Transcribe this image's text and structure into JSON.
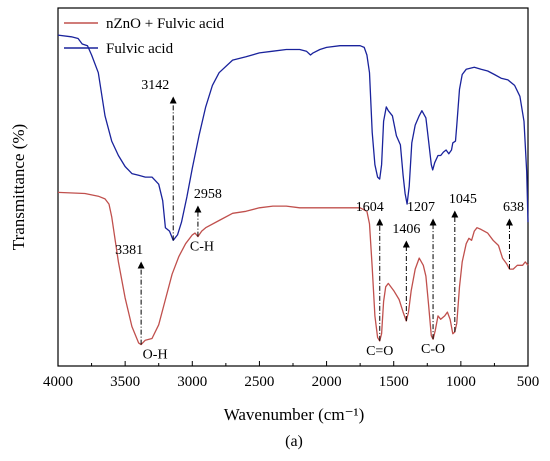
{
  "chart_data": {
    "type": "line",
    "xlabel": "Wavenumber (cm⁻¹)",
    "ylabel": "Transmittance (%)",
    "panel_label": "(a)",
    "xlim": [
      4000,
      500
    ],
    "ylim": [
      0,
      100
    ],
    "x_ticks": [
      4000,
      3500,
      3000,
      2500,
      2000,
      1500,
      1000,
      500
    ],
    "y_ticks_shown": false,
    "grid": false,
    "legend_position": "top-left",
    "series": [
      {
        "name": "nZnO + Fulvic acid",
        "color": "#c0504d",
        "points": [
          [
            4000,
            48.7
          ],
          [
            3800,
            48.4
          ],
          [
            3700,
            47.6
          ],
          [
            3650,
            46.8
          ],
          [
            3620,
            45.3
          ],
          [
            3600,
            41.6
          ],
          [
            3550,
            28.4
          ],
          [
            3500,
            17.9
          ],
          [
            3450,
            9.5
          ],
          [
            3400,
            4.7
          ],
          [
            3381,
            4.2
          ],
          [
            3350,
            5.5
          ],
          [
            3300,
            6.0
          ],
          [
            3250,
            10.0
          ],
          [
            3200,
            17.4
          ],
          [
            3150,
            24.8
          ],
          [
            3100,
            30.0
          ],
          [
            3050,
            33.7
          ],
          [
            3000,
            36.3
          ],
          [
            2980,
            36.8
          ],
          [
            2958,
            35.8
          ],
          [
            2930,
            37.4
          ],
          [
            2900,
            38.4
          ],
          [
            2800,
            40.5
          ],
          [
            2700,
            42.6
          ],
          [
            2600,
            43.2
          ],
          [
            2500,
            44.2
          ],
          [
            2400,
            44.7
          ],
          [
            2300,
            44.7
          ],
          [
            2200,
            44.2
          ],
          [
            2100,
            44.2
          ],
          [
            2000,
            44.2
          ],
          [
            1900,
            44.2
          ],
          [
            1800,
            44.2
          ],
          [
            1750,
            44.2
          ],
          [
            1700,
            43.2
          ],
          [
            1680,
            39.5
          ],
          [
            1660,
            26.8
          ],
          [
            1640,
            12.6
          ],
          [
            1620,
            6.3
          ],
          [
            1604,
            5.3
          ],
          [
            1590,
            7.4
          ],
          [
            1575,
            16.8
          ],
          [
            1560,
            21.1
          ],
          [
            1540,
            22.1
          ],
          [
            1500,
            20.0
          ],
          [
            1460,
            17.4
          ],
          [
            1430,
            13.7
          ],
          [
            1406,
            11.1
          ],
          [
            1390,
            13.7
          ],
          [
            1370,
            20.0
          ],
          [
            1340,
            26.3
          ],
          [
            1310,
            29.5
          ],
          [
            1280,
            27.4
          ],
          [
            1260,
            24.2
          ],
          [
            1240,
            15.8
          ],
          [
            1220,
            6.8
          ],
          [
            1207,
            5.8
          ],
          [
            1190,
            8.4
          ],
          [
            1170,
            12.6
          ],
          [
            1150,
            11.6
          ],
          [
            1120,
            12.6
          ],
          [
            1100,
            13.7
          ],
          [
            1080,
            11.6
          ],
          [
            1060,
            7.4
          ],
          [
            1045,
            7.9
          ],
          [
            1030,
            10.5
          ],
          [
            1010,
            21.1
          ],
          [
            990,
            28.4
          ],
          [
            960,
            33.7
          ],
          [
            940,
            35.3
          ],
          [
            920,
            34.7
          ],
          [
            900,
            37.4
          ],
          [
            880,
            38.4
          ],
          [
            850,
            37.9
          ],
          [
            800,
            36.8
          ],
          [
            760,
            34.7
          ],
          [
            720,
            33.2
          ],
          [
            690,
            29.5
          ],
          [
            660,
            27.9
          ],
          [
            638,
            26.3
          ],
          [
            610,
            26.3
          ],
          [
            580,
            27.4
          ],
          [
            560,
            27.4
          ],
          [
            540,
            27.4
          ],
          [
            520,
            28.4
          ],
          [
            500,
            27.4
          ]
        ]
      },
      {
        "name": "Fulvic acid",
        "color": "#1a239c",
        "points": [
          [
            4000,
            94.7
          ],
          [
            3900,
            94.2
          ],
          [
            3850,
            93.7
          ],
          [
            3820,
            92.1
          ],
          [
            3780,
            91.6
          ],
          [
            3750,
            88.9
          ],
          [
            3700,
            83.7
          ],
          [
            3650,
            71.1
          ],
          [
            3600,
            63.7
          ],
          [
            3550,
            59.5
          ],
          [
            3500,
            56.3
          ],
          [
            3450,
            54.2
          ],
          [
            3400,
            53.7
          ],
          [
            3350,
            53.2
          ],
          [
            3300,
            53.2
          ],
          [
            3250,
            51.1
          ],
          [
            3220,
            46.3
          ],
          [
            3200,
            38.4
          ],
          [
            3170,
            37.4
          ],
          [
            3142,
            34.7
          ],
          [
            3110,
            36.3
          ],
          [
            3080,
            40.0
          ],
          [
            3040,
            47.4
          ],
          [
            3000,
            55.8
          ],
          [
            2950,
            65.3
          ],
          [
            2900,
            73.7
          ],
          [
            2850,
            80.0
          ],
          [
            2800,
            83.7
          ],
          [
            2700,
            87.4
          ],
          [
            2600,
            88.4
          ],
          [
            2500,
            89.5
          ],
          [
            2400,
            90.0
          ],
          [
            2300,
            90.5
          ],
          [
            2200,
            90.5
          ],
          [
            2150,
            90.0
          ],
          [
            2120,
            88.9
          ],
          [
            2100,
            89.5
          ],
          [
            2050,
            90.5
          ],
          [
            2000,
            91.1
          ],
          [
            1900,
            91.6
          ],
          [
            1800,
            91.6
          ],
          [
            1750,
            91.6
          ],
          [
            1720,
            91.1
          ],
          [
            1700,
            88.9
          ],
          [
            1680,
            83.7
          ],
          [
            1660,
            66.3
          ],
          [
            1640,
            56.8
          ],
          [
            1620,
            53.2
          ],
          [
            1604,
            52.6
          ],
          [
            1590,
            56.8
          ],
          [
            1575,
            69.5
          ],
          [
            1555,
            73.7
          ],
          [
            1540,
            72.6
          ],
          [
            1510,
            71.1
          ],
          [
            1480,
            65.3
          ],
          [
            1450,
            62.6
          ],
          [
            1430,
            53.7
          ],
          [
            1415,
            48.4
          ],
          [
            1400,
            45.3
          ],
          [
            1385,
            50.5
          ],
          [
            1365,
            63.2
          ],
          [
            1340,
            68.4
          ],
          [
            1310,
            71.1
          ],
          [
            1290,
            72.6
          ],
          [
            1260,
            70.5
          ],
          [
            1240,
            63.7
          ],
          [
            1220,
            56.8
          ],
          [
            1210,
            55.3
          ],
          [
            1195,
            57.4
          ],
          [
            1170,
            59.5
          ],
          [
            1150,
            59.5
          ],
          [
            1130,
            60.5
          ],
          [
            1110,
            61.1
          ],
          [
            1090,
            60.0
          ],
          [
            1070,
            61.1
          ],
          [
            1060,
            63.2
          ],
          [
            1040,
            63.7
          ],
          [
            1030,
            68.4
          ],
          [
            1010,
            78.9
          ],
          [
            990,
            83.2
          ],
          [
            960,
            84.7
          ],
          [
            900,
            85.3
          ],
          [
            850,
            84.7
          ],
          [
            800,
            84.2
          ],
          [
            750,
            83.2
          ],
          [
            700,
            82.1
          ],
          [
            650,
            81.6
          ],
          [
            600,
            80.0
          ],
          [
            560,
            76.8
          ],
          [
            530,
            69.5
          ],
          [
            510,
            54.7
          ],
          [
            500,
            40.0
          ]
        ]
      }
    ],
    "annotations": [
      {
        "label": "3142",
        "at": 3142,
        "series": 1,
        "group": "O-H"
      },
      {
        "label": "3381",
        "at": 3381,
        "series": 0,
        "bottom_label": "O-H"
      },
      {
        "label": "2958",
        "at": 2958,
        "series": 0,
        "bottom_label": "C-H"
      },
      {
        "label": "1604",
        "at": 1604,
        "series": 0,
        "bottom_label": "C=O"
      },
      {
        "label": "1406",
        "at": 1406,
        "series": 0
      },
      {
        "label": "1207",
        "at": 1207,
        "series": 0,
        "bottom_label": "C-O"
      },
      {
        "label": "1045",
        "at": 1045,
        "series": 0
      },
      {
        "label": "638",
        "at": 638,
        "series": 0
      }
    ]
  }
}
